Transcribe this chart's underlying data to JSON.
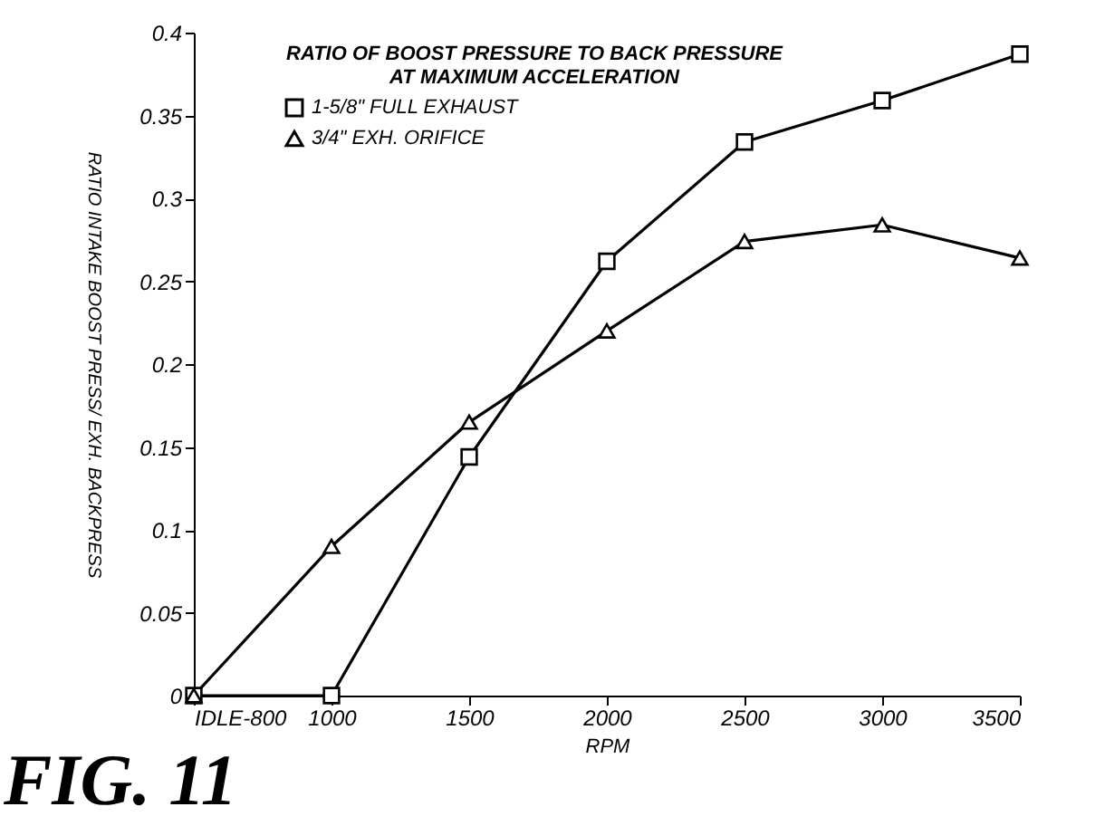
{
  "chart_data": {
    "type": "line",
    "title": [
      "RATIO OF BOOST PRESSURE TO BACK PRESSURE",
      "AT MAXIMUM ACCELERATION"
    ],
    "xlabel": "RPM",
    "ylabel": "RATIO INTAKE BOOST PRESS/ EXH. BACKPRESS",
    "categories": [
      "IDLE-800",
      "1000",
      "1500",
      "2000",
      "2500",
      "3000",
      "3500"
    ],
    "series": [
      {
        "name": "1-5/8\" FULL EXHAUST",
        "color": "#000000",
        "marker": "square",
        "values": [
          0,
          0,
          0.144,
          0.262,
          0.334,
          0.359,
          0.387
        ]
      },
      {
        "name": "3/4\" EXH. ORIFICE",
        "color": "#000000",
        "marker": "triangle",
        "values": [
          0,
          0.09,
          0.165,
          0.22,
          0.274,
          0.284,
          0.264
        ]
      }
    ],
    "ylim": [
      0,
      0.4
    ],
    "yticks": [
      0,
      0.05,
      0.1,
      0.15,
      0.2,
      0.25,
      0.3,
      0.35,
      0.4
    ],
    "grid": false,
    "legend": "top left",
    "line_style": "solid",
    "annotations": [
      "FIG. 11"
    ]
  }
}
